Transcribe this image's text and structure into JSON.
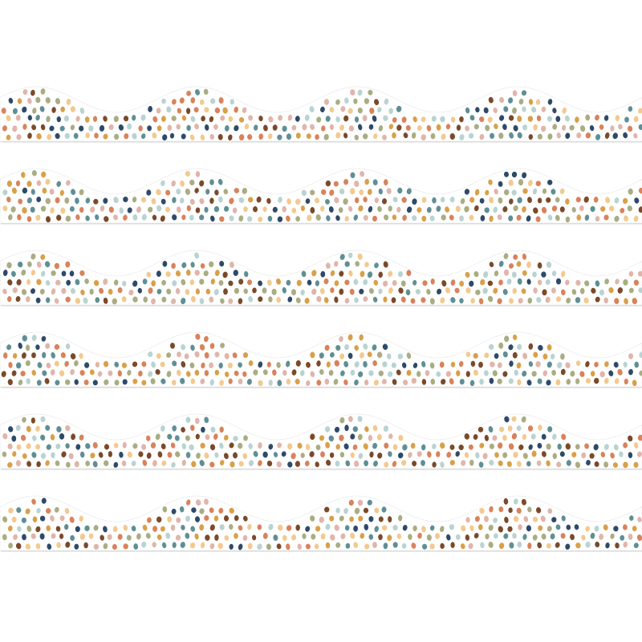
{
  "product": {
    "strip_count": 6,
    "background": "#ffffff",
    "strip_fill": "#ffffff",
    "strip_edge": "#d9d9d9",
    "dot_colors": [
      "#7a4a2a",
      "#5f8f95",
      "#2e4a6a",
      "#d9825b",
      "#d9a04a",
      "#e0b5ab",
      "#a9ad82",
      "#b9d3d3",
      "#f3c98f"
    ]
  }
}
